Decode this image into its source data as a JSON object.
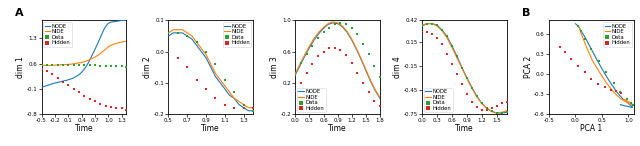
{
  "chart_data": [
    {
      "type": "line",
      "x_label": "Time",
      "y_label": "dim 1",
      "xlim": [
        -0.5,
        1.4
      ],
      "ylim": [
        -0.8,
        1.8
      ],
      "xticks": [
        -0.5,
        -0.2,
        0.1,
        0.4,
        0.7,
        1.0,
        1.3
      ],
      "yticks": [
        -0.8,
        -0.1,
        0.6,
        1.3
      ],
      "legend": "upper left",
      "annotations": [
        "A"
      ],
      "series": [
        {
          "name": "NODE",
          "type": "line",
          "line_style": "solid",
          "x": [
            -0.5,
            -0.45,
            -0.4,
            -0.35,
            -0.3,
            -0.25,
            -0.2,
            -0.15,
            -0.1,
            -0.05,
            0.0,
            0.05,
            0.1,
            0.15,
            0.2,
            0.25,
            0.3,
            0.35,
            0.4,
            0.45,
            0.5,
            0.55,
            0.6,
            0.65,
            0.7,
            0.75,
            0.8,
            0.85,
            0.9,
            0.95,
            1.0,
            1.05,
            1.1,
            1.15,
            1.2,
            1.25,
            1.3,
            1.35,
            1.4
          ],
          "values": [
            -0.05,
            -0.04,
            -0.02,
            0.0,
            0.02,
            0.04,
            0.06,
            0.07,
            0.09,
            0.1,
            0.12,
            0.13,
            0.15,
            0.17,
            0.19,
            0.22,
            0.26,
            0.3,
            0.36,
            0.43,
            0.52,
            0.62,
            0.74,
            0.87,
            1.0,
            1.13,
            1.27,
            1.41,
            1.55,
            1.65,
            1.72,
            1.75,
            1.76,
            1.77,
            1.78,
            1.79,
            1.8,
            1.8,
            1.8
          ]
        },
        {
          "name": "NIDE",
          "type": "line",
          "line_style": "solid",
          "x": [
            -0.5,
            -0.45,
            -0.4,
            -0.35,
            -0.3,
            -0.25,
            -0.2,
            -0.15,
            -0.1,
            -0.05,
            0.0,
            0.05,
            0.1,
            0.15,
            0.2,
            0.25,
            0.3,
            0.35,
            0.4,
            0.45,
            0.5,
            0.55,
            0.6,
            0.65,
            0.7,
            0.75,
            0.8,
            0.85,
            0.9,
            0.95,
            1.0,
            1.05,
            1.1,
            1.15,
            1.2,
            1.25,
            1.3,
            1.35,
            1.4
          ],
          "values": [
            0.55,
            0.55,
            0.55,
            0.55,
            0.55,
            0.55,
            0.56,
            0.56,
            0.56,
            0.57,
            0.57,
            0.57,
            0.58,
            0.58,
            0.59,
            0.6,
            0.61,
            0.62,
            0.63,
            0.65,
            0.67,
            0.69,
            0.72,
            0.75,
            0.78,
            0.82,
            0.86,
            0.91,
            0.96,
            1.01,
            1.07,
            1.1,
            1.13,
            1.15,
            1.17,
            1.19,
            1.2,
            1.21,
            1.22
          ]
        },
        {
          "name": "Data",
          "type": "scatter",
          "marker": "square",
          "x": [
            -0.5,
            -0.38,
            -0.26,
            -0.14,
            -0.02,
            0.1,
            0.22,
            0.34,
            0.46,
            0.58,
            0.7,
            0.82,
            0.94,
            1.06,
            1.18,
            1.3,
            1.4
          ],
          "values": [
            0.57,
            0.57,
            0.57,
            0.57,
            0.57,
            0.57,
            0.56,
            0.56,
            0.56,
            0.55,
            0.55,
            0.54,
            0.53,
            0.53,
            0.52,
            0.52,
            0.51
          ]
        },
        {
          "name": "Hidden",
          "type": "scatter",
          "marker": "square",
          "x": [
            -0.5,
            -0.38,
            -0.26,
            -0.14,
            -0.02,
            0.1,
            0.22,
            0.34,
            0.46,
            0.58,
            0.7,
            0.82,
            0.94,
            1.06,
            1.18,
            1.3,
            1.4
          ],
          "values": [
            0.45,
            0.38,
            0.3,
            0.2,
            0.1,
            0.0,
            -0.1,
            -0.2,
            -0.3,
            -0.38,
            -0.45,
            -0.52,
            -0.57,
            -0.6,
            -0.63,
            -0.65,
            -0.68
          ]
        }
      ]
    },
    {
      "type": "line",
      "x_label": "Time",
      "y_label": "dim 2",
      "xlim": [
        0.5,
        1.4
      ],
      "ylim": [
        -0.2,
        0.1
      ],
      "xticks": [
        0.5,
        0.7,
        0.9,
        1.1,
        1.3
      ],
      "yticks": [
        -0.2,
        -0.1,
        0.0,
        0.1
      ],
      "legend": "upper right",
      "series": [
        {
          "name": "NODE",
          "type": "line",
          "line_style": "solid",
          "x": [
            0.5,
            0.55,
            0.6,
            0.65,
            0.7,
            0.75,
            0.8,
            0.85,
            0.9,
            0.95,
            1.0,
            1.05,
            1.1,
            1.15,
            1.2,
            1.25,
            1.3,
            1.35,
            1.4
          ],
          "values": [
            0.05,
            0.06,
            0.06,
            0.06,
            0.05,
            0.04,
            0.02,
            0.0,
            -0.02,
            -0.05,
            -0.08,
            -0.1,
            -0.12,
            -0.14,
            -0.15,
            -0.17,
            -0.18,
            -0.19,
            -0.19
          ]
        },
        {
          "name": "NIDE",
          "type": "line",
          "line_style": "solid",
          "x": [
            0.5,
            0.55,
            0.6,
            0.65,
            0.7,
            0.75,
            0.8,
            0.85,
            0.9,
            0.95,
            1.0,
            1.05,
            1.1,
            1.15,
            1.2,
            1.25,
            1.3,
            1.35,
            1.4
          ],
          "values": [
            0.06,
            0.07,
            0.07,
            0.07,
            0.06,
            0.05,
            0.03,
            0.01,
            -0.01,
            -0.04,
            -0.07,
            -0.09,
            -0.11,
            -0.13,
            -0.15,
            -0.16,
            -0.17,
            -0.18,
            -0.18
          ]
        },
        {
          "name": "Data",
          "type": "scatter",
          "marker": "square",
          "x": [
            0.5,
            0.6,
            0.7,
            0.8,
            0.9,
            1.0,
            1.1,
            1.2,
            1.3,
            1.4
          ],
          "values": [
            0.06,
            0.06,
            0.05,
            0.03,
            0.0,
            -0.04,
            -0.09,
            -0.13,
            -0.17,
            -0.19
          ]
        },
        {
          "name": "Hidden",
          "type": "scatter",
          "marker": "square",
          "x": [
            0.5,
            0.6,
            0.7,
            0.8,
            0.9,
            1.0,
            1.1,
            1.2,
            1.3,
            1.4
          ],
          "values": [
            0.0,
            -0.02,
            -0.05,
            -0.09,
            -0.12,
            -0.15,
            -0.17,
            -0.18,
            -0.18,
            -0.18
          ]
        }
      ]
    },
    {
      "type": "line",
      "x_label": "Time",
      "y_label": "dim 3",
      "xlim": [
        0.0,
        1.8
      ],
      "ylim": [
        -0.2,
        1.0
      ],
      "xticks": [
        0.0,
        0.3,
        0.6,
        0.9,
        1.2,
        1.5,
        1.8
      ],
      "yticks": [
        -0.2,
        0.2,
        0.6,
        1.0
      ],
      "legend": "lower left",
      "series": [
        {
          "name": "NODE",
          "type": "line",
          "line_style": "solid",
          "x": [
            0.0,
            0.1,
            0.2,
            0.3,
            0.4,
            0.5,
            0.6,
            0.7,
            0.8,
            0.9,
            1.0,
            1.1,
            1.2,
            1.3,
            1.4,
            1.5,
            1.6,
            1.7,
            1.8
          ],
          "values": [
            0.3,
            0.42,
            0.54,
            0.65,
            0.75,
            0.83,
            0.9,
            0.95,
            0.97,
            0.96,
            0.92,
            0.85,
            0.75,
            0.63,
            0.5,
            0.36,
            0.22,
            0.1,
            0.0
          ]
        },
        {
          "name": "NIDE",
          "type": "line",
          "line_style": "solid",
          "x": [
            0.0,
            0.1,
            0.2,
            0.3,
            0.4,
            0.5,
            0.6,
            0.7,
            0.8,
            0.9,
            1.0,
            1.1,
            1.2,
            1.3,
            1.4,
            1.5,
            1.6,
            1.7,
            1.8
          ],
          "values": [
            0.32,
            0.44,
            0.56,
            0.67,
            0.77,
            0.85,
            0.91,
            0.96,
            0.98,
            0.97,
            0.93,
            0.86,
            0.76,
            0.64,
            0.51,
            0.37,
            0.23,
            0.11,
            0.01
          ]
        },
        {
          "name": "Data",
          "type": "scatter",
          "marker": "square",
          "x": [
            0.0,
            0.12,
            0.24,
            0.36,
            0.48,
            0.6,
            0.72,
            0.84,
            0.96,
            1.08,
            1.2,
            1.32,
            1.44,
            1.56,
            1.68,
            1.8
          ],
          "values": [
            0.3,
            0.45,
            0.57,
            0.67,
            0.77,
            0.85,
            0.9,
            0.95,
            0.97,
            0.96,
            0.9,
            0.82,
            0.7,
            0.57,
            0.42,
            0.27
          ]
        },
        {
          "name": "Hidden",
          "type": "scatter",
          "marker": "square",
          "x": [
            0.0,
            0.12,
            0.24,
            0.36,
            0.48,
            0.6,
            0.72,
            0.84,
            0.96,
            1.08,
            1.2,
            1.32,
            1.44,
            1.56,
            1.68,
            1.8
          ],
          "values": [
            0.1,
            0.2,
            0.32,
            0.44,
            0.54,
            0.6,
            0.64,
            0.65,
            0.62,
            0.55,
            0.45,
            0.33,
            0.2,
            0.08,
            -0.03,
            -0.1
          ]
        }
      ]
    },
    {
      "type": "line",
      "x_label": "Time",
      "y_label": "dim 4",
      "xlim": [
        0.0,
        1.7
      ],
      "ylim": [
        -0.75,
        0.42
      ],
      "xticks": [
        0.0,
        0.3,
        0.6,
        0.9,
        1.2,
        1.5
      ],
      "yticks": [
        -0.75,
        -0.45,
        -0.15,
        0.15,
        0.42
      ],
      "legend": "lower left",
      "series": [
        {
          "name": "NODE",
          "type": "line",
          "line_style": "solid",
          "x": [
            0.0,
            0.1,
            0.2,
            0.3,
            0.4,
            0.5,
            0.6,
            0.7,
            0.8,
            0.9,
            1.0,
            1.1,
            1.2,
            1.3,
            1.4,
            1.5,
            1.6,
            1.7
          ],
          "values": [
            0.35,
            0.38,
            0.38,
            0.36,
            0.3,
            0.22,
            0.1,
            -0.03,
            -0.17,
            -0.3,
            -0.42,
            -0.53,
            -0.62,
            -0.68,
            -0.72,
            -0.74,
            -0.74,
            -0.73
          ]
        },
        {
          "name": "NIDE",
          "type": "line",
          "line_style": "solid",
          "x": [
            0.0,
            0.1,
            0.2,
            0.3,
            0.4,
            0.5,
            0.6,
            0.7,
            0.8,
            0.9,
            1.0,
            1.1,
            1.2,
            1.3,
            1.4,
            1.5,
            1.6,
            1.7
          ],
          "values": [
            0.36,
            0.38,
            0.38,
            0.35,
            0.29,
            0.2,
            0.08,
            -0.05,
            -0.18,
            -0.31,
            -0.43,
            -0.54,
            -0.62,
            -0.68,
            -0.72,
            -0.74,
            -0.73,
            -0.71
          ]
        },
        {
          "name": "Data",
          "type": "scatter",
          "marker": "square",
          "x": [
            0.0,
            0.1,
            0.2,
            0.3,
            0.4,
            0.5,
            0.6,
            0.7,
            0.8,
            0.9,
            1.0,
            1.1,
            1.2,
            1.3,
            1.4,
            1.5,
            1.6,
            1.7
          ],
          "values": [
            0.35,
            0.38,
            0.38,
            0.36,
            0.3,
            0.22,
            0.1,
            -0.03,
            -0.17,
            -0.3,
            -0.42,
            -0.53,
            -0.62,
            -0.68,
            -0.72,
            -0.74,
            -0.74,
            -0.73
          ]
        },
        {
          "name": "Hidden",
          "type": "scatter",
          "marker": "square",
          "x": [
            0.0,
            0.1,
            0.2,
            0.3,
            0.4,
            0.5,
            0.6,
            0.7,
            0.8,
            0.9,
            1.0,
            1.1,
            1.2,
            1.3,
            1.4,
            1.5,
            1.6,
            1.7
          ],
          "values": [
            0.28,
            0.28,
            0.25,
            0.2,
            0.12,
            0.0,
            -0.12,
            -0.25,
            -0.38,
            -0.5,
            -0.6,
            -0.67,
            -0.7,
            -0.7,
            -0.68,
            -0.65,
            -0.62,
            -0.6
          ]
        }
      ]
    },
    {
      "type": "line",
      "x_label": "PCA 1",
      "y_label": "PCA 2",
      "xlim": [
        -0.5,
        1.1
      ],
      "ylim": [
        -0.6,
        0.8
      ],
      "xticks": [
        -0.5,
        0.0,
        0.5,
        1.0
      ],
      "yticks": [
        -0.6,
        -0.3,
        0.0,
        0.3,
        0.6
      ],
      "legend": "upper right",
      "annotations": [
        "B"
      ],
      "series": [
        {
          "name": "NODE",
          "type": "line",
          "line_style": "solid",
          "x": [
            0.0,
            0.05,
            0.1,
            0.18,
            0.28,
            0.4,
            0.52,
            0.65,
            0.78,
            0.9,
            1.0,
            1.05,
            1.08,
            1.08,
            1.05,
            1.0,
            0.93,
            0.85
          ],
          "values": [
            0.75,
            0.72,
            0.65,
            0.55,
            0.4,
            0.22,
            0.05,
            -0.12,
            -0.27,
            -0.38,
            -0.44,
            -0.48,
            -0.5,
            -0.5,
            -0.5,
            -0.49,
            -0.48,
            -0.46
          ]
        },
        {
          "name": "NIDE",
          "type": "line",
          "line_style": "solid",
          "x": [
            0.05,
            0.08,
            0.1,
            0.15,
            0.22,
            0.32,
            0.45,
            0.58,
            0.72,
            0.85,
            0.96,
            1.02,
            1.06,
            1.08,
            1.07,
            1.04,
            0.98,
            0.92
          ],
          "values": [
            0.72,
            0.68,
            0.62,
            0.52,
            0.38,
            0.2,
            0.03,
            -0.13,
            -0.27,
            -0.37,
            -0.42,
            -0.45,
            -0.46,
            -0.46,
            -0.45,
            -0.43,
            -0.41,
            -0.38
          ]
        },
        {
          "name": "Data",
          "type": "scatter",
          "marker": "square",
          "x": [
            0.05,
            0.1,
            0.18,
            0.3,
            0.44,
            0.58,
            0.72,
            0.85,
            0.97,
            1.05,
            1.08
          ],
          "values": [
            0.71,
            0.64,
            0.52,
            0.37,
            0.19,
            0.02,
            -0.14,
            -0.27,
            -0.37,
            -0.44,
            -0.47
          ]
        },
        {
          "name": "Hidden",
          "type": "scatter",
          "marker": "square",
          "x": [
            -0.3,
            -0.2,
            -0.08,
            0.05,
            0.18,
            0.3,
            0.42,
            0.55,
            0.67,
            0.77,
            0.87
          ],
          "values": [
            0.4,
            0.32,
            0.22,
            0.12,
            0.02,
            -0.07,
            -0.15,
            -0.2,
            -0.24,
            -0.26,
            -0.28
          ]
        }
      ]
    }
  ]
}
